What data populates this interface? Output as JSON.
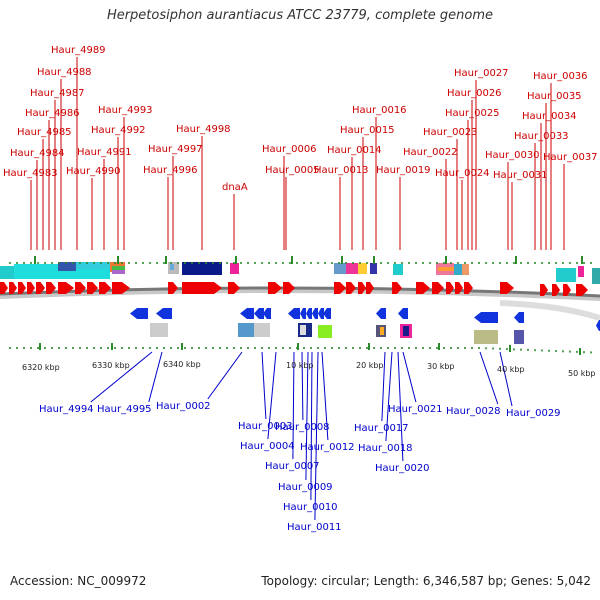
{
  "title": "Herpetosiphon aurantiacus ATCC 23779, complete genome",
  "footer": {
    "accession": "Accession: NC_009972",
    "summary": "Topology: circular; Length: 6,346,587 bp; Genes: 5,042"
  },
  "colors": {
    "forward_label": "#cc0000",
    "reverse_label": "#0000cc",
    "forward_gene": "#ee0000",
    "reverse_gene": "#1133dd",
    "backbone": "#777777",
    "tick": "#2a8a2a"
  },
  "scale_labels": [
    "6320 kbp",
    "6330 kbp",
    "6340 kbp",
    "10 kbp",
    "20 kbp",
    "30 kbp",
    "40 kbp",
    "50 kbp"
  ],
  "forward_genes": [
    "Haur_4983",
    "Haur_4984",
    "Haur_4985",
    "Haur_4986",
    "Haur_4987",
    "Haur_4988",
    "Haur_4989",
    "Haur_4990",
    "Haur_4991",
    "Haur_4992",
    "Haur_4993",
    "Haur_4996",
    "Haur_4997",
    "Haur_4998",
    "dnaA",
    "Haur_0005",
    "Haur_0006",
    "Haur_0013",
    "Haur_0014",
    "Haur_0015",
    "Haur_0016",
    "Haur_0019",
    "Haur_0022",
    "Haur_0023",
    "Haur_0024",
    "Haur_0025",
    "Haur_0026",
    "Haur_0027",
    "Haur_0030",
    "Haur_0031",
    "Haur_0033",
    "Haur_0034",
    "Haur_0035",
    "Haur_0036",
    "Haur_0037"
  ],
  "reverse_genes": [
    "Haur_4994",
    "Haur_4995",
    "Haur_0002",
    "Haur_0003",
    "Haur_0004",
    "Haur_0007",
    "Haur_0008",
    "Haur_0009",
    "Haur_0010",
    "Haur_0011",
    "Haur_0012",
    "Haur_0017",
    "Haur_0018",
    "Haur_0020",
    "Haur_0021",
    "Haur_0028",
    "Haur_0029"
  ]
}
